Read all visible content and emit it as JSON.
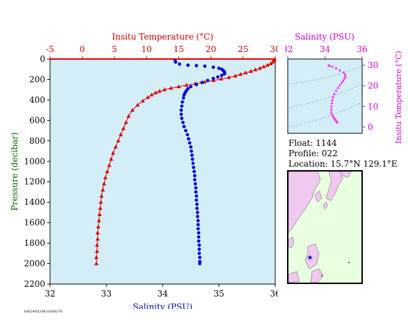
{
  "chart_data": [
    {
      "id": "main-profile",
      "type": "scatter",
      "y_axis": {
        "label": "Pressure (decibar)",
        "range": [
          2200,
          0
        ],
        "ticks": [
          0,
          200,
          400,
          600,
          800,
          1000,
          1200,
          1400,
          1600,
          1800,
          2000,
          2200
        ],
        "inverted": true
      },
      "x_axis_bottom": {
        "label": "Salinity (PSU)",
        "range": [
          32,
          36
        ],
        "ticks": [
          32,
          33,
          34,
          35,
          36
        ]
      },
      "x_axis_top": {
        "label": "Insitu Temperature (°C)",
        "range": [
          -5,
          30
        ],
        "ticks": [
          -5,
          0,
          5,
          10,
          15,
          20,
          25,
          30
        ]
      },
      "background": "#d4eef7",
      "series": [
        {
          "color": "#e00000",
          "marker": "triangle",
          "axis": "top",
          "connected": true,
          "points": [
            [
              29.9,
              5
            ],
            [
              29.8,
              15
            ],
            [
              29.6,
              30
            ],
            [
              29.3,
              45
            ],
            [
              28.8,
              60
            ],
            [
              28.2,
              75
            ],
            [
              27.6,
              90
            ],
            [
              26.9,
              105
            ],
            [
              26.2,
              120
            ],
            [
              25.4,
              135
            ],
            [
              24.6,
              150
            ],
            [
              23.8,
              165
            ],
            [
              22.8,
              180
            ],
            [
              21.6,
              195
            ],
            [
              20.4,
              210
            ],
            [
              19.0,
              225
            ],
            [
              17.6,
              240
            ],
            [
              16.2,
              255
            ],
            [
              15.0,
              270
            ],
            [
              13.8,
              285
            ],
            [
              12.8,
              300
            ],
            [
              12.0,
              315
            ],
            [
              11.4,
              330
            ],
            [
              10.8,
              350
            ],
            [
              10.2,
              375
            ],
            [
              9.4,
              410
            ],
            [
              8.6,
              450
            ],
            [
              7.8,
              500
            ],
            [
              7.2,
              560
            ],
            [
              6.8,
              620
            ],
            [
              6.4,
              680
            ],
            [
              6.0,
              740
            ],
            [
              5.6,
              800
            ],
            [
              5.2,
              860
            ],
            [
              4.8,
              920
            ],
            [
              4.5,
              980
            ],
            [
              4.2,
              1040
            ],
            [
              3.9,
              1100
            ],
            [
              3.6,
              1160
            ],
            [
              3.4,
              1220
            ],
            [
              3.2,
              1280
            ],
            [
              3.0,
              1340
            ],
            [
              2.9,
              1400
            ],
            [
              2.8,
              1460
            ],
            [
              2.7,
              1520
            ],
            [
              2.6,
              1580
            ],
            [
              2.5,
              1640
            ],
            [
              2.4,
              1700
            ],
            [
              2.4,
              1760
            ],
            [
              2.3,
              1820
            ],
            [
              2.3,
              1880
            ],
            [
              2.2,
              1940
            ],
            [
              2.2,
              2000
            ]
          ]
        },
        {
          "color": "#0000dd",
          "marker": "circle",
          "axis": "bottom",
          "connected": false,
          "points": [
            [
              34.22,
              10
            ],
            [
              34.23,
              30
            ],
            [
              34.3,
              50
            ],
            [
              34.45,
              60
            ],
            [
              34.6,
              65
            ],
            [
              34.75,
              70
            ],
            [
              34.9,
              80
            ],
            [
              35.0,
              90
            ],
            [
              35.05,
              100
            ],
            [
              35.08,
              115
            ],
            [
              35.1,
              130
            ],
            [
              35.1,
              145
            ],
            [
              35.05,
              160
            ],
            [
              34.98,
              175
            ],
            [
              34.9,
              190
            ],
            [
              34.8,
              210
            ],
            [
              34.7,
              230
            ],
            [
              34.6,
              250
            ],
            [
              34.5,
              270
            ],
            [
              34.45,
              290
            ],
            [
              34.42,
              310
            ],
            [
              34.4,
              330
            ],
            [
              34.38,
              350
            ],
            [
              34.37,
              380
            ],
            [
              34.35,
              420
            ],
            [
              34.34,
              460
            ],
            [
              34.33,
              500
            ],
            [
              34.33,
              540
            ],
            [
              34.34,
              580
            ],
            [
              34.36,
              620
            ],
            [
              34.38,
              660
            ],
            [
              34.41,
              700
            ],
            [
              34.44,
              740
            ],
            [
              34.46,
              780
            ],
            [
              34.48,
              820
            ],
            [
              34.5,
              860
            ],
            [
              34.51,
              900
            ],
            [
              34.52,
              940
            ],
            [
              34.53,
              980
            ],
            [
              34.54,
              1020
            ],
            [
              34.55,
              1060
            ],
            [
              34.56,
              1100
            ],
            [
              34.57,
              1140
            ],
            [
              34.57,
              1180
            ],
            [
              34.58,
              1220
            ],
            [
              34.59,
              1260
            ],
            [
              34.59,
              1300
            ],
            [
              34.6,
              1340
            ],
            [
              34.6,
              1380
            ],
            [
              34.61,
              1420
            ],
            [
              34.61,
              1460
            ],
            [
              34.62,
              1500
            ],
            [
              34.62,
              1540
            ],
            [
              34.63,
              1580
            ],
            [
              34.63,
              1620
            ],
            [
              34.63,
              1660
            ],
            [
              34.64,
              1700
            ],
            [
              34.64,
              1740
            ],
            [
              34.64,
              1780
            ],
            [
              34.65,
              1820
            ],
            [
              34.65,
              1860
            ],
            [
              34.65,
              1900
            ],
            [
              34.66,
              1940
            ],
            [
              34.66,
              1980
            ],
            [
              34.66,
              2000
            ]
          ]
        }
      ]
    },
    {
      "id": "ts-diagram",
      "type": "scatter",
      "x_axis_top": {
        "label": "Salinity (PSU)",
        "range": [
          32,
          36
        ],
        "ticks": [
          32,
          34,
          36
        ]
      },
      "y_axis_right": {
        "label": "Insitu Temperature (°C)",
        "range": [
          -3,
          33
        ],
        "ticks": [
          0,
          10,
          20,
          30
        ]
      },
      "background": "#d4eef7",
      "series": [
        {
          "color": "#ff33ff",
          "marker": "dot",
          "points": [
            [
              34.2,
              29.9
            ],
            [
              34.25,
              29.7
            ],
            [
              34.4,
              29.3
            ],
            [
              34.6,
              28.5
            ],
            [
              34.8,
              27.5
            ],
            [
              35.0,
              26.5
            ],
            [
              35.08,
              25.5
            ],
            [
              35.1,
              24.5
            ],
            [
              35.05,
              23.5
            ],
            [
              34.98,
              22.5
            ],
            [
              34.9,
              21.5
            ],
            [
              34.8,
              20.3
            ],
            [
              34.7,
              19.0
            ],
            [
              34.6,
              17.5
            ],
            [
              34.5,
              16.0
            ],
            [
              34.44,
              14.5
            ],
            [
              34.4,
              13.0
            ],
            [
              34.37,
              11.5
            ],
            [
              34.35,
              10.0
            ],
            [
              34.34,
              8.5
            ],
            [
              34.34,
              7.2
            ],
            [
              34.38,
              6.0
            ],
            [
              34.44,
              5.0
            ],
            [
              34.5,
              4.2
            ],
            [
              34.55,
              3.6
            ],
            [
              34.6,
              3.0
            ],
            [
              34.63,
              2.6
            ],
            [
              34.65,
              2.3
            ],
            [
              34.66,
              2.2
            ]
          ]
        }
      ],
      "isolines_color": "#8aa8c8"
    }
  ],
  "float_info": {
    "float": "Float:  1144",
    "profile": "Profile:  022",
    "location": "Location:  15.7°N  129.1°E"
  },
  "map": {
    "ocean_color": "#e8ffe0",
    "land_color": "#f0c8f0",
    "marker": "★",
    "marker_color": "#0000cc"
  },
  "footnote": "1062405204.0388276"
}
